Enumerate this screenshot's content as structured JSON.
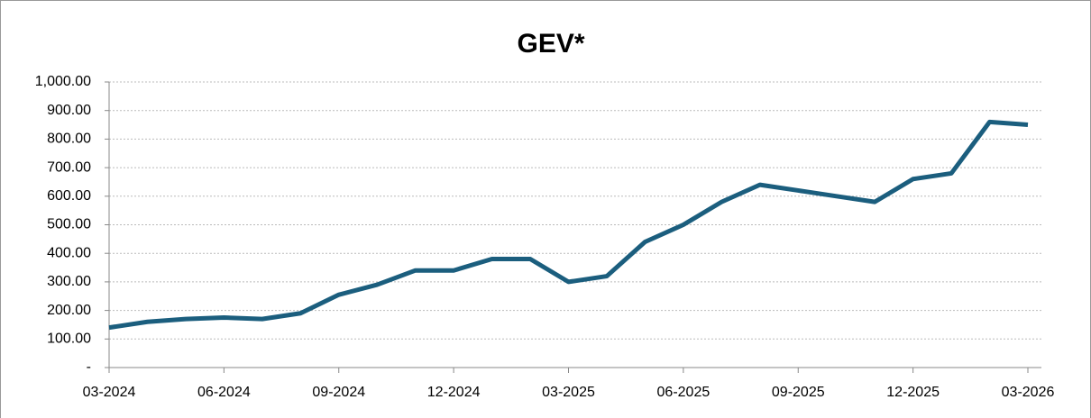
{
  "chart_data": {
    "type": "line",
    "title": "GEV*",
    "x": [
      "03-2024",
      "04-2024",
      "05-2024",
      "06-2024",
      "07-2024",
      "08-2024",
      "09-2024",
      "10-2024",
      "11-2024",
      "12-2024",
      "01-2025",
      "02-2025",
      "03-2025",
      "04-2025",
      "05-2025",
      "06-2025",
      "07-2025",
      "08-2025",
      "09-2025",
      "10-2025",
      "11-2025",
      "12-2025",
      "01-2026",
      "02-2026",
      "03-2026"
    ],
    "series": [
      {
        "name": "GEV",
        "color": "#1b5e7e",
        "values": [
          140,
          160,
          170,
          175,
          170,
          190,
          255,
          290,
          340,
          340,
          380,
          380,
          300,
          320,
          440,
          500,
          580,
          640,
          620,
          600,
          580,
          660,
          680,
          860,
          850
        ]
      }
    ],
    "xticks": [
      "03-2024",
      "06-2024",
      "09-2024",
      "12-2024",
      "03-2025",
      "06-2025",
      "09-2025",
      "12-2025",
      "03-2026"
    ],
    "ylim": [
      0,
      1000
    ],
    "yticks": [
      {
        "value": 0,
        "label": "-"
      },
      {
        "value": 100,
        "label": "100.00"
      },
      {
        "value": 200,
        "label": "200.00"
      },
      {
        "value": 300,
        "label": "300.00"
      },
      {
        "value": 400,
        "label": "400.00"
      },
      {
        "value": 500,
        "label": "500.00"
      },
      {
        "value": 600,
        "label": "600.00"
      },
      {
        "value": 700,
        "label": "700.00"
      },
      {
        "value": 800,
        "label": "800.00"
      },
      {
        "value": 900,
        "label": "900.00"
      },
      {
        "value": 1000,
        "label": "1,000.00"
      }
    ],
    "grid": true
  }
}
